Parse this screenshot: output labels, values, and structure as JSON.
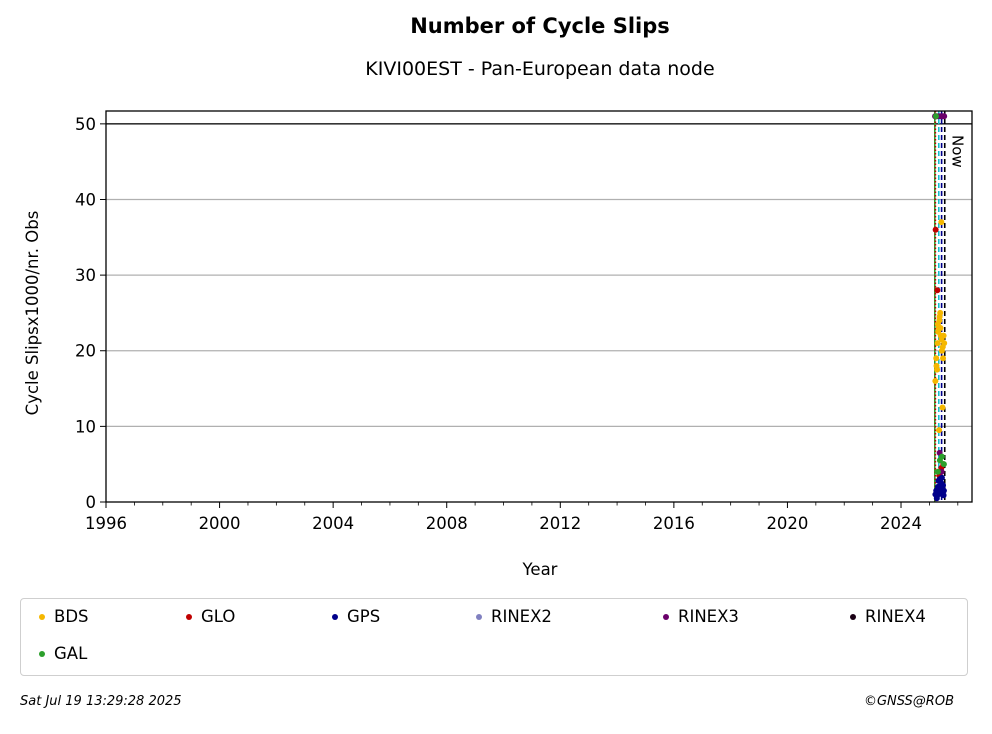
{
  "chart_data": {
    "type": "scatter",
    "title": "Number of Cycle Slips",
    "subtitle": "KIVI00EST - Pan-European data node",
    "xlabel": "Year",
    "ylabel": "Cycle Slipsx1000/nr. Obs",
    "xlim": [
      1996,
      2026.5
    ],
    "ylim": [
      0,
      51.7
    ],
    "xticks": [
      "1996",
      "2000",
      "2004",
      "2008",
      "2012",
      "2016",
      "2020",
      "2024"
    ],
    "yticks": [
      "0",
      "10",
      "20",
      "30",
      "40",
      "50"
    ],
    "grid": "horizontal",
    "hline": 50,
    "now_label": "Now",
    "now_x": 2025.54,
    "series": [
      {
        "name": "BDS",
        "color": "#f5b700",
        "x": [
          2025.21,
          2025.25,
          2025.29,
          2025.33,
          2025.36,
          2025.4,
          2025.44,
          2025.48,
          2025.52,
          2025.27,
          2025.31,
          2025.35,
          2025.39,
          2025.43,
          2025.47,
          2025.5,
          2025.24,
          2025.38,
          2025.42,
          2025.46,
          2025.34,
          2025.3
        ],
        "y": [
          16,
          18,
          21,
          23,
          24.5,
          22,
          20,
          19,
          21,
          17.5,
          22.5,
          24,
          23,
          21.5,
          20.5,
          22,
          19,
          25,
          37,
          12.5,
          9.5,
          23.5
        ]
      },
      {
        "name": "GLO",
        "color": "#c00000",
        "x": [
          2025.22,
          2025.28,
          2025.35,
          2025.42,
          2025.49
        ],
        "y": [
          36,
          28,
          3.5,
          4.5,
          5
        ]
      },
      {
        "name": "GPS",
        "color": "#00008b",
        "x": [
          2025.21,
          2025.24,
          2025.27,
          2025.3,
          2025.33,
          2025.36,
          2025.39,
          2025.42,
          2025.45,
          2025.48,
          2025.51,
          2025.26,
          2025.32,
          2025.38,
          2025.44,
          2025.5
        ],
        "y": [
          1,
          1.5,
          0.8,
          2,
          1.2,
          3,
          1.8,
          2.5,
          1,
          2.2,
          1.5,
          0.5,
          2.8,
          1.3,
          3.2,
          0.9
        ]
      },
      {
        "name": "RINEX2",
        "color": "#8080c0",
        "x": [],
        "y": []
      },
      {
        "name": "RINEX3",
        "color": "#6a006a",
        "x": [
          2025.2,
          2025.26,
          2025.33,
          2025.4,
          2025.47,
          2025.52,
          2025.36,
          2025.43
        ],
        "y": [
          51,
          51,
          51,
          51,
          51,
          51,
          6.5,
          4
        ]
      },
      {
        "name": "RINEX4",
        "color": "#1a0014",
        "x": [],
        "y": []
      },
      {
        "name": "GAL",
        "color": "#2ca02c",
        "x": [
          2025.23,
          2025.3,
          2025.37,
          2025.44,
          2025.51
        ],
        "y": [
          51,
          4,
          5.5,
          6,
          5
        ]
      }
    ],
    "vlines": [
      {
        "x": 2025.19,
        "color": "#2ca02c",
        "style": "solid"
      },
      {
        "x": 2025.21,
        "color": "#c00000",
        "style": "dotted"
      },
      {
        "x": 2025.33,
        "color": "#17becf",
        "style": "dashed"
      },
      {
        "x": 2025.43,
        "color": "#00008b",
        "style": "dashed"
      },
      {
        "x": 2025.54,
        "color": "#000000",
        "style": "dashed"
      }
    ]
  },
  "legend": {
    "items": [
      {
        "label": "BDS",
        "color": "#f5b700"
      },
      {
        "label": "GLO",
        "color": "#c00000"
      },
      {
        "label": "GPS",
        "color": "#00008b"
      },
      {
        "label": "RINEX2",
        "color": "#8080c0"
      },
      {
        "label": "RINEX3",
        "color": "#6a006a"
      },
      {
        "label": "RINEX4",
        "color": "#1a0014"
      },
      {
        "label": "GAL",
        "color": "#2ca02c"
      }
    ]
  },
  "footer": {
    "date": "Sat Jul 19 13:29:28 2025",
    "copyright": "©GNSS@ROB"
  }
}
